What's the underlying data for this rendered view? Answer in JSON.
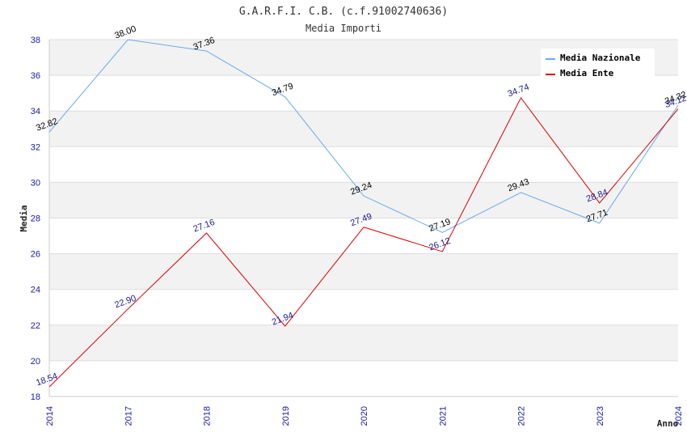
{
  "chart_data": {
    "type": "line",
    "title": "G.A.R.F.I. C.B. (c.f.91002740636)",
    "subtitle": "Media Importi",
    "xlabel": "Anno",
    "ylabel": "Media",
    "categories": [
      "2014",
      "2017",
      "2018",
      "2019",
      "2020",
      "2021",
      "2022",
      "2023",
      "2024"
    ],
    "ylim": [
      18,
      38
    ],
    "yticks": [
      "18",
      "20",
      "22",
      "24",
      "26",
      "28",
      "30",
      "32",
      "34",
      "36",
      "38"
    ],
    "grid": "horizontal alternating bands",
    "legend_position": "top-right",
    "series": [
      {
        "name": "Media Nazionale",
        "color": "#66aaee",
        "label_color": "#000000",
        "values": [
          32.82,
          38.0,
          37.36,
          34.79,
          29.24,
          27.19,
          29.43,
          27.71,
          34.32
        ],
        "labels": [
          "32.82",
          "38.00",
          "37.36",
          "34.79",
          "29.24",
          "27.19",
          "29.43",
          "27.71",
          "34.32"
        ]
      },
      {
        "name": "Media Ente",
        "color": "#dd0000",
        "label_color": "#1a1a8c",
        "values": [
          18.54,
          22.9,
          27.16,
          21.94,
          27.49,
          26.12,
          34.74,
          28.84,
          34.12
        ],
        "labels": [
          "18.54",
          "22.90",
          "27.16",
          "21.94",
          "27.49",
          "26.12",
          "34.74",
          "28.84",
          "34.12"
        ]
      }
    ]
  }
}
